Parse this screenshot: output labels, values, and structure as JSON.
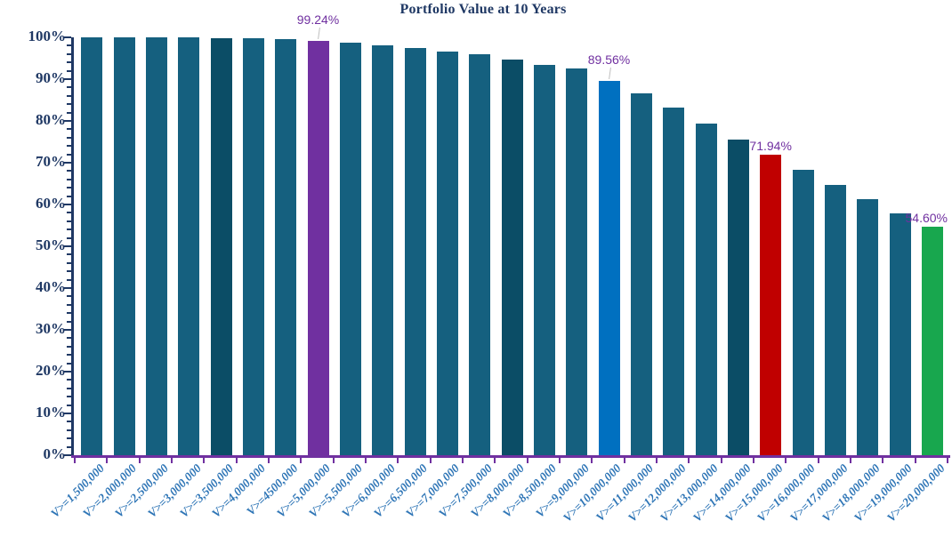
{
  "chart_data": {
    "type": "bar",
    "title": "Portfolio Value at 10 Years",
    "xlabel": "",
    "ylabel": "",
    "ylim": [
      0,
      100
    ],
    "grid": false,
    "legend": "none",
    "y_axis": {
      "ticks": [
        "0%",
        "10%",
        "20%",
        "30%",
        "40%",
        "50%",
        "60%",
        "70%",
        "80%",
        "90%",
        "100%"
      ],
      "minor_tick_step_percent": 2
    },
    "categories": [
      "V>=1,500,000",
      "V>=2,000,000",
      "V>=2,500,000",
      "V>=3,000,000",
      "V>=3,500,000",
      "V>=4,000,000",
      "V>=4500,000",
      "V>=5,000,000",
      "V>=5,500,000",
      "V>=6,000,000",
      "V>=6,500,000",
      "V>=7,000,000",
      "V>=7,500,000",
      "V>=8,000,000",
      "V>=8,500,000",
      "V>=9,000,000",
      "V>=10,000,000",
      "V>=11,000,000",
      "V>=12,000,000",
      "V>=13,000,000",
      "V>=14,000,000",
      "V>=15,000,000",
      "V>=16,000,000",
      "V>=17,000,000",
      "V>=18,000,000",
      "V>=19,000,000",
      "V>=20,000,000"
    ],
    "values": [
      99.98,
      99.97,
      99.95,
      99.92,
      99.85,
      99.7,
      99.5,
      99.24,
      98.7,
      98.1,
      97.5,
      96.7,
      96.0,
      94.7,
      93.4,
      92.5,
      89.56,
      86.6,
      83.2,
      79.4,
      75.6,
      71.94,
      68.4,
      64.7,
      61.3,
      57.8,
      54.6
    ],
    "bar_color_keys": [
      "teal",
      "teal",
      "teal",
      "teal",
      "dark",
      "teal",
      "teal",
      "purple",
      "teal",
      "teal",
      "teal",
      "teal",
      "teal",
      "dark",
      "teal",
      "teal",
      "blue",
      "teal",
      "teal",
      "teal",
      "dark",
      "red",
      "teal",
      "teal",
      "teal",
      "teal",
      "green"
    ],
    "annotations": [
      {
        "index": 7,
        "text": "99.24%",
        "leader": true,
        "align": "center"
      },
      {
        "index": 16,
        "text": "89.56%",
        "leader": true,
        "align": "center"
      },
      {
        "index": 21,
        "text": "71.94%",
        "leader": false,
        "align": "center"
      },
      {
        "index": 26,
        "text": "54.60%",
        "leader": false,
        "align": "right"
      }
    ],
    "colors": {
      "teal": "#15607F",
      "dark": "#0B4D66",
      "purple": "#7030A0",
      "blue": "#0070C0",
      "red": "#C00000",
      "green": "#18A74E",
      "title_text": "#1F3864",
      "y_axis": "#1F3864",
      "y_label_text": "#1F3864",
      "x_axis": "#7030A0",
      "x_label_text": "#2E75B6",
      "data_label_text": "#7030A0",
      "leader_line": "#BFBFBF",
      "background": "#FFFFFF"
    }
  }
}
